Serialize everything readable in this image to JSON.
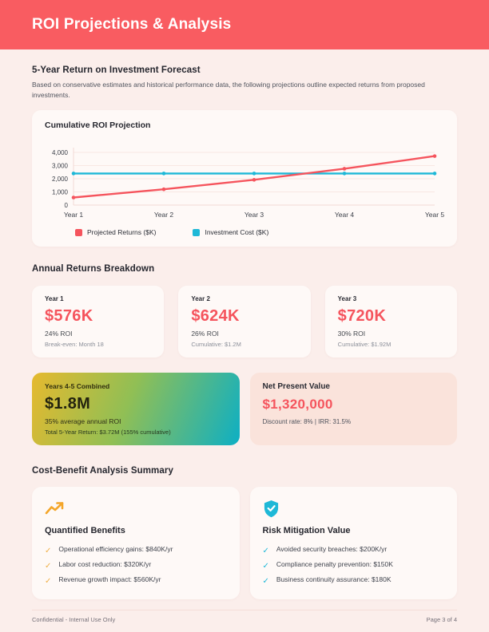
{
  "header": {
    "title": "ROI Projections & Analysis"
  },
  "intro": {
    "heading": "5-Year Return on Investment Forecast",
    "body": "Based on conservative estimates and historical performance data, the following projections outline expected returns from proposed investments."
  },
  "chart_data": {
    "type": "line",
    "title": "Cumulative ROI Projection",
    "categories": [
      "Year 1",
      "Year 2",
      "Year 3",
      "Year 4",
      "Year 5"
    ],
    "series": [
      {
        "name": "Projected Returns ($K)",
        "color": "#F5545D",
        "values": [
          576,
          1200,
          1920,
          2760,
          3720
        ]
      },
      {
        "name": "Investment Cost ($K)",
        "color": "#1EB8D7",
        "values": [
          2400,
          2400,
          2400,
          2400,
          2400
        ]
      }
    ],
    "ylim": [
      0,
      4000
    ],
    "yticks": [
      0,
      1000,
      2000,
      3000,
      4000
    ],
    "ytick_labels": [
      "0",
      "1,000",
      "2,000",
      "3,000",
      "4,000"
    ],
    "xlabel": "",
    "ylabel": "",
    "grid": true,
    "legend_position": "bottom"
  },
  "annual": {
    "heading": "Annual Returns Breakdown",
    "cards": [
      {
        "label": "Year 1",
        "value": "$576K",
        "roi": "24% ROI",
        "note": "Break-even: Month 18"
      },
      {
        "label": "Year 2",
        "value": "$624K",
        "roi": "26% ROI",
        "note": "Cumulative: $1.2M"
      },
      {
        "label": "Year 3",
        "value": "$720K",
        "roi": "30% ROI",
        "note": "Cumulative: $1.92M"
      }
    ],
    "combined": {
      "label": "Years 4-5 Combined",
      "value": "$1.8M",
      "roi": "35% average annual ROI",
      "note": "Total 5-Year Return: $3.72M (155% cumulative)"
    },
    "npv": {
      "label": "Net Present Value",
      "value": "$1,320,000",
      "note": "Discount rate: 8%  |  IRR: 31.5%"
    }
  },
  "costbenefit": {
    "heading": "Cost-Benefit Analysis Summary",
    "cards": [
      {
        "icon": "trending-up-icon",
        "title": "Quantified Benefits",
        "items": [
          "Operational efficiency gains: $840K/yr",
          "Labor cost reduction: $320K/yr",
          "Revenue growth impact: $560K/yr"
        ]
      },
      {
        "icon": "shield-check-icon",
        "title": "Risk Mitigation Value",
        "items": [
          "Avoided security breaches: $200K/yr",
          "Compliance penalty prevention: $150K",
          "Business continuity assurance: $180K"
        ]
      }
    ]
  },
  "footer": {
    "left": "Confidential - Internal Use Only",
    "right": "Page 3 of 4"
  }
}
